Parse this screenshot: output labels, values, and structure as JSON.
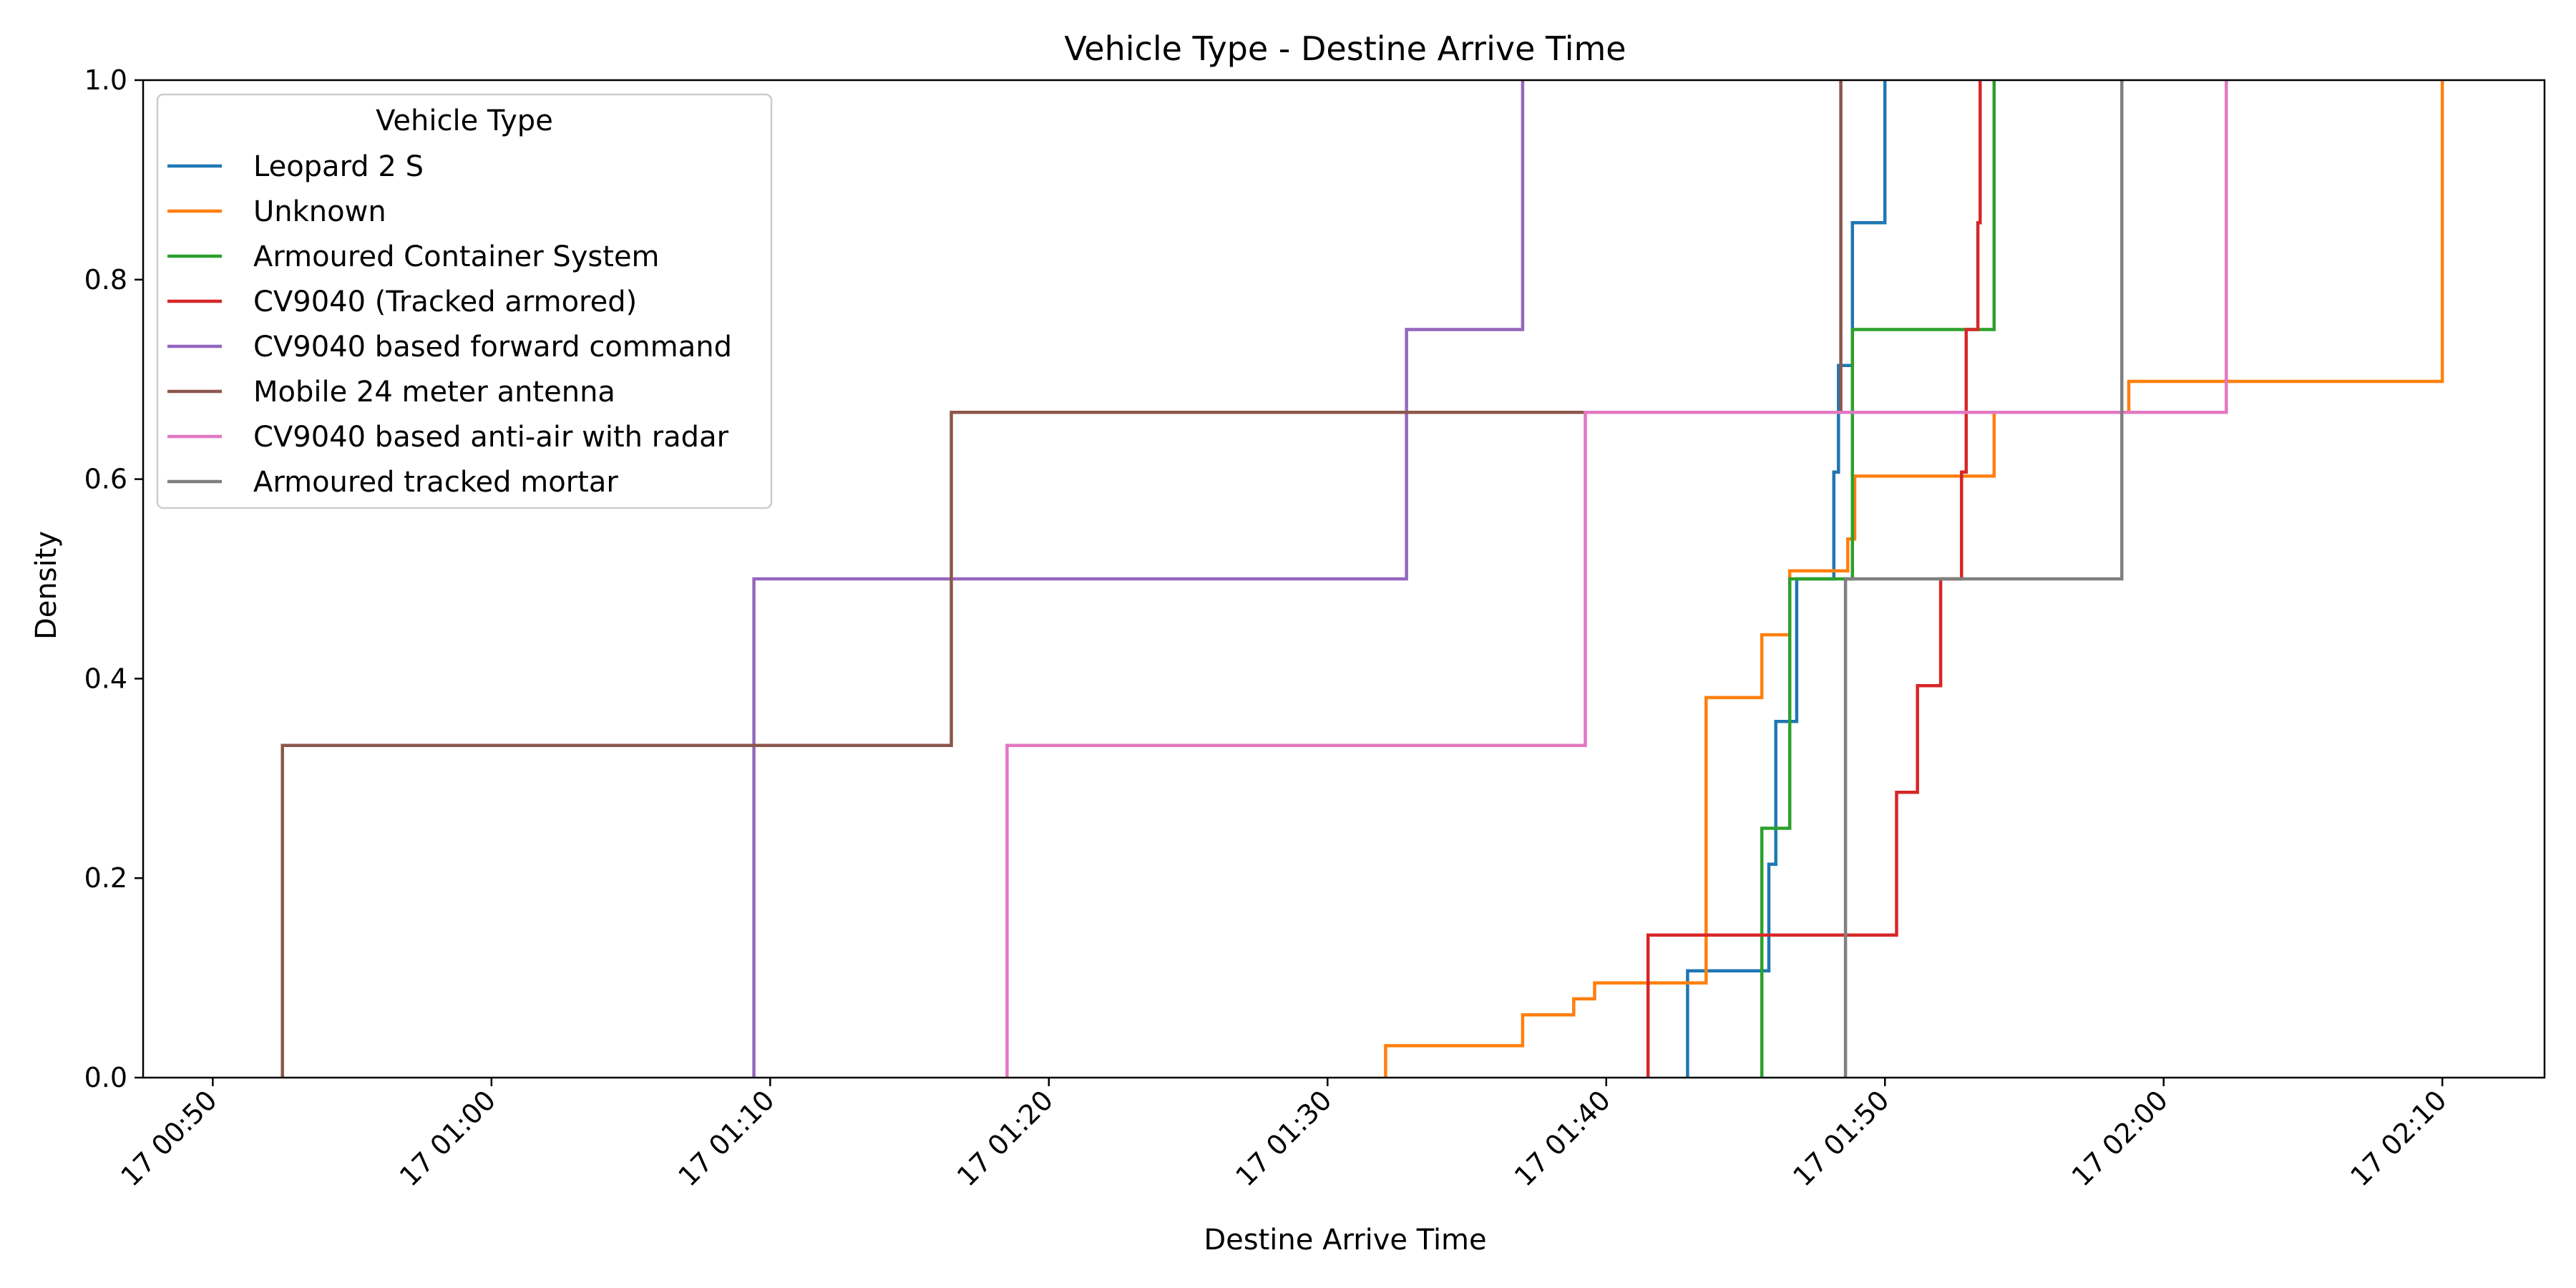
{
  "chart_data": {
    "type": "line",
    "subtype": "step",
    "title": "Vehicle Type - Destine Arrive Time",
    "xlabel": "Destine Arrive Time",
    "ylabel": "Density",
    "xlim": [
      "17 00:47:30",
      "17 02:13:40"
    ],
    "ylim": [
      0,
      1
    ],
    "grid": false,
    "x_tick_labels": [
      "17 00:50",
      "17 01:00",
      "17 01:10",
      "17 01:20",
      "17 01:30",
      "17 01:40",
      "17 01:50",
      "17 02:00",
      "17 02:10"
    ],
    "y_tick_labels": [
      "0.0",
      "0.2",
      "0.4",
      "0.6",
      "0.8",
      "1.0"
    ],
    "legend": {
      "title": "Vehicle Type",
      "position": "upper-left"
    },
    "series": [
      {
        "name": "Leopard 2 S",
        "color": "#1f77b4",
        "points": [
          [
            "17 01:42:55",
            0.0
          ],
          [
            "17 01:42:55",
            0.107
          ],
          [
            "17 01:45:50",
            0.107
          ],
          [
            "17 01:45:50",
            0.214
          ],
          [
            "17 01:46:05",
            0.214
          ],
          [
            "17 01:46:05",
            0.357
          ],
          [
            "17 01:46:50",
            0.357
          ],
          [
            "17 01:46:50",
            0.5
          ],
          [
            "17 01:48:10",
            0.5
          ],
          [
            "17 01:48:10",
            0.607
          ],
          [
            "17 01:48:20",
            0.607
          ],
          [
            "17 01:48:20",
            0.714
          ],
          [
            "17 01:48:50",
            0.714
          ],
          [
            "17 01:48:50",
            0.857
          ],
          [
            "17 01:50:00",
            0.857
          ],
          [
            "17 01:50:00",
            1.0
          ]
        ]
      },
      {
        "name": "Unknown",
        "color": "#ff7f0e",
        "points": [
          [
            "17 01:32:05",
            0.0
          ],
          [
            "17 01:32:05",
            0.032
          ],
          [
            "17 01:37:00",
            0.032
          ],
          [
            "17 01:37:00",
            0.063
          ],
          [
            "17 01:38:50",
            0.063
          ],
          [
            "17 01:38:50",
            0.079
          ],
          [
            "17 01:39:35",
            0.079
          ],
          [
            "17 01:39:35",
            0.095
          ],
          [
            "17 01:43:35",
            0.095
          ],
          [
            "17 01:43:35",
            0.381
          ],
          [
            "17 01:45:35",
            0.381
          ],
          [
            "17 01:45:35",
            0.444
          ],
          [
            "17 01:46:35",
            0.444
          ],
          [
            "17 01:46:35",
            0.508
          ],
          [
            "17 01:48:40",
            0.508
          ],
          [
            "17 01:48:40",
            0.54
          ],
          [
            "17 01:48:55",
            0.54
          ],
          [
            "17 01:48:55",
            0.603
          ],
          [
            "17 01:53:55",
            0.603
          ],
          [
            "17 01:53:55",
            0.667
          ],
          [
            "17 01:58:45",
            0.667
          ],
          [
            "17 01:58:45",
            0.698
          ],
          [
            "17 02:10:00",
            0.698
          ],
          [
            "17 02:10:00",
            1.0
          ]
        ]
      },
      {
        "name": "Armoured Container System",
        "color": "#2ca02c",
        "points": [
          [
            "17 01:45:35",
            0.0
          ],
          [
            "17 01:45:35",
            0.25
          ],
          [
            "17 01:46:35",
            0.25
          ],
          [
            "17 01:46:35",
            0.5
          ],
          [
            "17 01:48:50",
            0.5
          ],
          [
            "17 01:48:50",
            0.75
          ],
          [
            "17 01:53:55",
            0.75
          ],
          [
            "17 01:53:55",
            1.0
          ]
        ]
      },
      {
        "name": "CV9040 (Tracked armored)",
        "color": "#d62728",
        "points": [
          [
            "17 01:41:30",
            0.0
          ],
          [
            "17 01:41:30",
            0.143
          ],
          [
            "17 01:50:25",
            0.143
          ],
          [
            "17 01:50:25",
            0.286
          ],
          [
            "17 01:51:10",
            0.286
          ],
          [
            "17 01:51:10",
            0.393
          ],
          [
            "17 01:52:00",
            0.393
          ],
          [
            "17 01:52:00",
            0.5
          ],
          [
            "17 01:52:45",
            0.5
          ],
          [
            "17 01:52:45",
            0.607
          ],
          [
            "17 01:52:55",
            0.607
          ],
          [
            "17 01:52:55",
            0.75
          ],
          [
            "17 01:53:20",
            0.75
          ],
          [
            "17 01:53:20",
            0.857
          ],
          [
            "17 01:53:25",
            0.857
          ],
          [
            "17 01:53:25",
            1.0
          ]
        ]
      },
      {
        "name": "CV9040 based forward command",
        "color": "#9467bd",
        "points": [
          [
            "17 01:09:25",
            0.0
          ],
          [
            "17 01:09:25",
            0.5
          ],
          [
            "17 01:32:50",
            0.5
          ],
          [
            "17 01:32:50",
            0.75
          ],
          [
            "17 01:37:00",
            0.75
          ],
          [
            "17 01:37:00",
            1.0
          ]
        ]
      },
      {
        "name": "Mobile 24 meter antenna",
        "color": "#8c564b",
        "points": [
          [
            "17 00:52:30",
            0.0
          ],
          [
            "17 00:52:30",
            0.333
          ],
          [
            "17 01:16:30",
            0.333
          ],
          [
            "17 01:16:30",
            0.667
          ],
          [
            "17 01:48:25",
            0.667
          ],
          [
            "17 01:48:25",
            1.0
          ]
        ]
      },
      {
        "name": "CV9040 based anti-air with radar",
        "color": "#e377c2",
        "points": [
          [
            "17 01:18:30",
            0.0
          ],
          [
            "17 01:18:30",
            0.333
          ],
          [
            "17 01:39:15",
            0.333
          ],
          [
            "17 01:39:15",
            0.667
          ],
          [
            "17 02:02:15",
            0.667
          ],
          [
            "17 02:02:15",
            1.0
          ]
        ]
      },
      {
        "name": "Armoured tracked mortar",
        "color": "#7f7f7f",
        "points": [
          [
            "17 01:48:35",
            0.0
          ],
          [
            "17 01:48:35",
            0.5
          ],
          [
            "17 01:58:30",
            0.5
          ],
          [
            "17 01:58:30",
            1.0
          ]
        ]
      }
    ]
  }
}
